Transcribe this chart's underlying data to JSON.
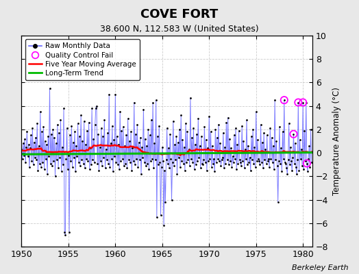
{
  "title": "COVE FORT",
  "subtitle": "38.600 N, 112.583 W (United States)",
  "ylabel": "Temperature Anomaly (°C)",
  "credit": "Berkeley Earth",
  "ylim": [
    -8,
    10
  ],
  "xlim": [
    1950,
    1981
  ],
  "xticks": [
    1950,
    1955,
    1960,
    1965,
    1970,
    1975,
    1980
  ],
  "yticks": [
    -8,
    -6,
    -4,
    -2,
    0,
    2,
    4,
    6,
    8,
    10
  ],
  "fig_bg_color": "#e8e8e8",
  "plot_bg_color": "#ffffff",
  "raw_line_color": "#6666ff",
  "raw_dot_color": "#000000",
  "moving_avg_color": "#ff0000",
  "trend_color": "#00bb00",
  "qc_color": "#ff00ff",
  "seed": 12345,
  "n_months": 372,
  "start_year": 1950.0,
  "qc_fail_indices": [
    336,
    348,
    354,
    360,
    365
  ],
  "raw_data": [
    0.3,
    -0.5,
    0.8,
    -0.2,
    1.2,
    -0.8,
    0.5,
    1.8,
    -0.3,
    0.7,
    -1.2,
    0.4,
    1.5,
    -0.7,
    2.1,
    -1.0,
    0.9,
    -0.4,
    1.3,
    -0.6,
    2.5,
    -1.5,
    0.6,
    -0.9,
    3.5,
    -1.2,
    1.8,
    -0.8,
    2.2,
    -1.4,
    1.0,
    -0.5,
    0.7,
    -1.8,
    1.4,
    -0.3,
    5.5,
    -0.9,
    1.6,
    -1.1,
    2.0,
    -0.7,
    1.3,
    -2.0,
    0.8,
    -0.6,
    2.4,
    -1.3,
    1.7,
    -0.4,
    2.8,
    -1.6,
    0.5,
    -1.0,
    3.8,
    -0.8,
    1.2,
    -0.5,
    2.1,
    -1.4,
    -0.2,
    -6.8,
    1.5,
    -0.7,
    2.3,
    -1.2,
    0.9,
    -0.4,
    1.8,
    -1.6,
    0.6,
    -0.3,
    2.5,
    -0.8,
    1.4,
    -1.1,
    3.2,
    -0.6,
    1.0,
    -0.9,
    2.7,
    -1.3,
    0.7,
    -0.5,
    1.9,
    -0.7,
    2.6,
    -1.4,
    0.4,
    -1.0,
    3.8,
    -0.6,
    1.2,
    -0.8,
    2.4,
    -1.2,
    4.0,
    -0.9,
    1.6,
    -1.5,
    0.5,
    -0.7,
    2.1,
    -1.1,
    1.4,
    -0.4,
    2.8,
    -1.3,
    0.3,
    -0.6,
    1.7,
    -0.9,
    5.0,
    -1.2,
    0.8,
    -0.5,
    2.3,
    -1.6,
    1.1,
    -0.3,
    2.6,
    -0.8,
    1.4,
    -1.0,
    0.7,
    -1.4,
    3.5,
    -0.7,
    1.9,
    -0.5,
    2.2,
    -1.1,
    0.6,
    -0.9,
    1.5,
    -1.3,
    2.9,
    -0.6,
    1.0,
    -0.8,
    1.8,
    -1.5,
    0.4,
    -0.7,
    4.3,
    -1.0,
    1.6,
    -0.5,
    2.4,
    -1.2,
    0.9,
    -0.6,
    1.3,
    -1.8,
    0.5,
    -0.4,
    3.7,
    -0.8,
    1.2,
    -1.1,
    0.6,
    -0.9,
    2.0,
    -1.4,
    1.5,
    -0.7,
    2.8,
    -0.5,
    1.1,
    -1.3,
    0.8,
    -0.6,
    4.5,
    -5.5,
    1.4,
    -1.0,
    2.3,
    -0.8,
    1.7,
    -1.2,
    0.5,
    -0.7,
    1.9,
    -1.5,
    -4.2,
    -0.6,
    2.1,
    -0.9,
    0.4,
    -1.3,
    1.6,
    -0.5,
    -3.2,
    -0.8,
    2.7,
    -1.1,
    0.7,
    -0.6,
    1.4,
    -1.8,
    0.9,
    -0.4,
    2.0,
    -1.2,
    3.2,
    -0.7,
    1.1,
    -0.9,
    0.5,
    -1.5,
    2.5,
    -0.8,
    1.8,
    -0.6,
    0.3,
    -1.1,
    4.7,
    -0.5,
    1.3,
    -0.8,
    2.1,
    -1.4,
    0.7,
    -1.0,
    1.6,
    -0.7,
    2.9,
    -0.4,
    0.6,
    -1.3,
    1.4,
    -0.9,
    -1.0,
    -0.6,
    2.2,
    -0.8,
    1.1,
    -1.5,
    0.4,
    -0.7,
    3.1,
    -0.5,
    1.8,
    -1.2,
    0.6,
    -0.9,
    -0.5,
    -1.6,
    2.0,
    -0.8,
    1.3,
    -0.5,
    2.4,
    -0.7,
    0.8,
    -1.1,
    -0.6,
    -0.4,
    1.7,
    -1.3,
    0.5,
    -0.9,
    2.6,
    -0.6,
    3.0,
    -1.0,
    1.2,
    -0.7,
    0.4,
    -1.2,
    -0.3,
    -0.8,
    1.5,
    -0.5,
    2.1,
    -1.4,
    0.7,
    -0.9,
    1.9,
    -0.6,
    -0.8,
    -1.1,
    2.3,
    -0.7,
    1.0,
    -1.3,
    0.3,
    -0.5,
    2.8,
    -1.0,
    0.6,
    -0.8,
    -0.4,
    -1.5,
    1.4,
    -0.6,
    2.0,
    -0.9,
    0.5,
    -1.2,
    3.5,
    -0.7,
    1.1,
    -0.5,
    -0.7,
    -1.0,
    2.4,
    -0.8,
    0.9,
    -1.3,
    1.7,
    -0.6,
    0.3,
    -0.9,
    1.5,
    -0.7,
    -0.5,
    -1.2,
    2.1,
    -0.5,
    1.3,
    -0.8,
    0.6,
    -1.4,
    4.5,
    -0.6,
    1.0,
    -1.1,
    -4.2,
    -0.7,
    2.2,
    -0.9,
    0.4,
    -1.6,
    1.8,
    -0.5,
    0.7,
    -0.8,
    -0.9,
    -1.3,
    1.2,
    -0.6,
    2.5,
    -1.0,
    0.5,
    -0.7,
    -1.5,
    -0.4,
    1.6,
    -0.9,
    0.8,
    -1.2,
    -1.8,
    -0.6,
    4.3,
    -0.8,
    1.1,
    -0.5,
    0.3,
    -1.1,
    0.2,
    -1.4,
    1.9,
    -0.7,
    4.3,
    -0.9,
    -1.6,
    -0.5,
    0.6,
    -1.2,
    2.0,
    -0.8
  ]
}
